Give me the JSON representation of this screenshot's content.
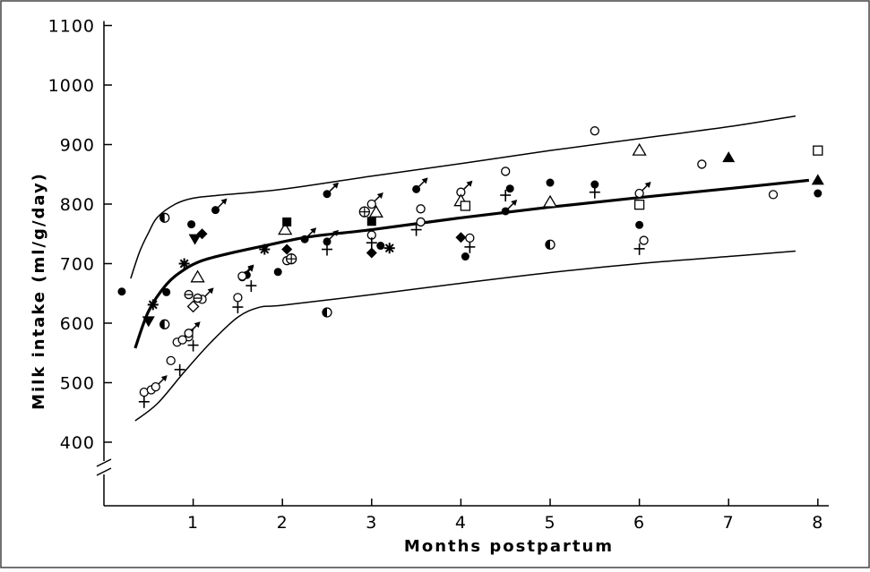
{
  "chart_data": {
    "type": "scatter",
    "xlabel": "Months postpartum",
    "ylabel": "Milk intake (ml/g/day)",
    "x_ticks": [
      "1",
      "2",
      "3",
      "4",
      "5",
      "6",
      "7",
      "8"
    ],
    "y_ticks": [
      "400",
      "500",
      "600",
      "700",
      "800",
      "900",
      "1000",
      "1100"
    ],
    "xlim": [
      0,
      8.1
    ],
    "ylim": [
      400,
      1100
    ],
    "axis_break": "y-axis below 400",
    "colors": {
      "ink": "#000000",
      "background": "#ffffff",
      "frame": "#444444"
    },
    "curves": [
      {
        "role": "upper limit",
        "x": [
          0.3,
          0.4,
          0.5,
          0.6,
          0.8,
          1.0,
          1.3,
          2,
          3,
          4,
          5,
          6,
          7,
          7.75
        ],
        "y": [
          675,
          720,
          752,
          778,
          800,
          810,
          815,
          825,
          847,
          868,
          890,
          910,
          930,
          948
        ]
      },
      {
        "role": "mean",
        "x": [
          0.35,
          0.5,
          0.7,
          0.9,
          1.1,
          1.4,
          1.8,
          2.3,
          3,
          4,
          5,
          6,
          7,
          7.9
        ],
        "y": [
          558,
          620,
          665,
          690,
          705,
          717,
          730,
          745,
          757,
          777,
          795,
          811,
          826,
          840
        ]
      },
      {
        "role": "lower limit",
        "x": [
          0.35,
          0.6,
          0.9,
          1.2,
          1.5,
          1.75,
          2,
          3,
          4,
          5,
          6,
          7,
          7.75
        ],
        "y": [
          436,
          465,
          518,
          568,
          610,
          627,
          630,
          648,
          667,
          685,
          700,
          712,
          721
        ]
      }
    ],
    "series": [
      {
        "marker": "filled-circle",
        "points": [
          [
            0.2,
            653
          ],
          [
            0.98,
            766
          ],
          [
            0.7,
            652
          ],
          [
            1.6,
            681
          ],
          [
            3.1,
            730
          ],
          [
            4.05,
            712
          ],
          [
            4.55,
            826
          ],
          [
            5,
            836
          ],
          [
            5.5,
            833
          ],
          [
            6,
            765
          ],
          [
            8,
            818
          ],
          [
            1.95,
            686
          ]
        ]
      },
      {
        "marker": "filled-circle-arrow",
        "points": [
          [
            1.25,
            790
          ],
          [
            2.5,
            817
          ],
          [
            3.5,
            825
          ],
          [
            4.5,
            788
          ],
          [
            1.55,
            677
          ],
          [
            2.25,
            741
          ],
          [
            2.5,
            737
          ]
        ]
      },
      {
        "marker": "open-circle",
        "points": [
          [
            0.45,
            484
          ],
          [
            0.53,
            488
          ],
          [
            0.75,
            537
          ],
          [
            0.82,
            568
          ],
          [
            0.95,
            577
          ],
          [
            1.5,
            643
          ],
          [
            2.05,
            705
          ],
          [
            3.55,
            792
          ],
          [
            4.5,
            855
          ],
          [
            5.5,
            923
          ],
          [
            6.7,
            867
          ],
          [
            7.5,
            816
          ],
          [
            3,
            748
          ],
          [
            3.55,
            770
          ],
          [
            4.1,
            743
          ],
          [
            6.05,
            739
          ]
        ]
      },
      {
        "marker": "open-circle-arrow",
        "points": [
          [
            0.58,
            493
          ],
          [
            0.88,
            572
          ],
          [
            1.55,
            679
          ],
          [
            1.1,
            640
          ],
          [
            3,
            800
          ],
          [
            4,
            820
          ],
          [
            6,
            818
          ],
          [
            0.95,
            583
          ]
        ]
      },
      {
        "marker": "plus",
        "points": [
          [
            0.45,
            468
          ],
          [
            0.85,
            522
          ],
          [
            1.0,
            563
          ],
          [
            1.5,
            627
          ],
          [
            1.65,
            663
          ],
          [
            2.5,
            724
          ],
          [
            3.0,
            735
          ],
          [
            3.5,
            757
          ],
          [
            4.1,
            728
          ],
          [
            4.5,
            815
          ],
          [
            5.5,
            820
          ],
          [
            6,
            725
          ]
        ]
      },
      {
        "marker": "asterisk",
        "points": [
          [
            0.55,
            631
          ],
          [
            0.9,
            700
          ],
          [
            1.8,
            724
          ],
          [
            3.2,
            726
          ]
        ]
      },
      {
        "marker": "filled-diamond",
        "points": [
          [
            1.1,
            750
          ],
          [
            2.05,
            724
          ],
          [
            3.0,
            718
          ],
          [
            4.0,
            744
          ]
        ]
      },
      {
        "marker": "open-diamond",
        "points": [
          [
            1.0,
            628
          ]
        ]
      },
      {
        "marker": "filled-down-triangle",
        "points": [
          [
            0.5,
            604
          ],
          [
            1.02,
            742
          ]
        ]
      },
      {
        "marker": "open-triangle",
        "points": [
          [
            1.05,
            677
          ],
          [
            2.03,
            757
          ],
          [
            3.05,
            786
          ],
          [
            4.0,
            805
          ],
          [
            5.0,
            803
          ],
          [
            6.0,
            890
          ]
        ]
      },
      {
        "marker": "filled-triangle",
        "points": [
          [
            7.0,
            878
          ],
          [
            8.0,
            840
          ]
        ]
      },
      {
        "marker": "filled-square",
        "points": [
          [
            2.05,
            770
          ],
          [
            3.0,
            771
          ]
        ]
      },
      {
        "marker": "open-square",
        "points": [
          [
            4.05,
            797
          ],
          [
            6.0,
            799
          ],
          [
            8.0,
            890
          ]
        ]
      },
      {
        "marker": "circle-plus",
        "points": [
          [
            2.1,
            708
          ],
          [
            2.92,
            787
          ]
        ]
      },
      {
        "marker": "half-filled-circle",
        "points": [
          [
            0.68,
            598
          ],
          [
            0.68,
            777
          ],
          [
            2.5,
            618
          ],
          [
            5.0,
            732
          ]
        ]
      },
      {
        "marker": "circle-line",
        "points": [
          [
            0.95,
            648
          ],
          [
            1.05,
            642
          ]
        ]
      }
    ]
  }
}
